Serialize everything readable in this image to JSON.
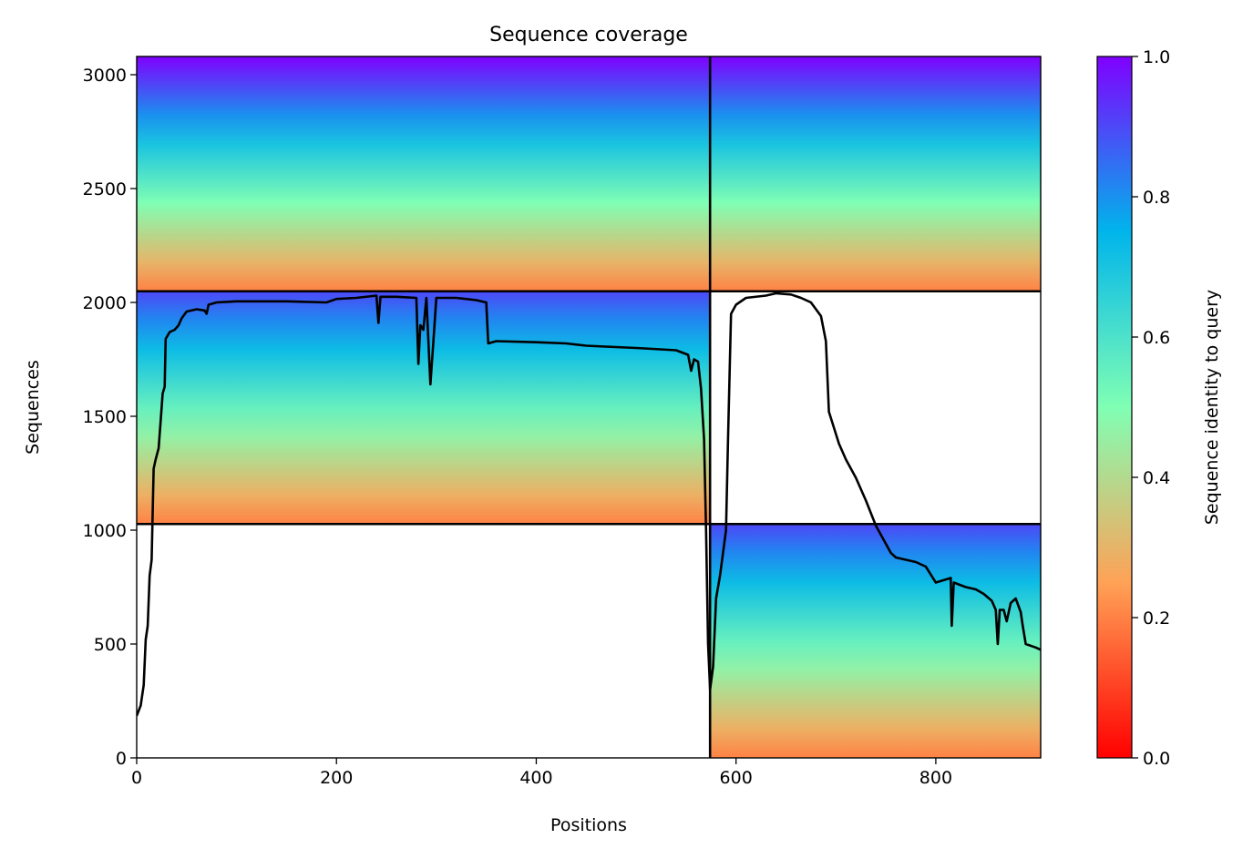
{
  "chart_data": {
    "type": "heatmap",
    "title": "Sequence coverage",
    "xlabel": "Positions",
    "ylabel": "Sequences",
    "xlim": [
      0,
      905
    ],
    "ylim": [
      0,
      3080
    ],
    "xticks": [
      0,
      200,
      400,
      600,
      800
    ],
    "yticks": [
      0,
      500,
      1000,
      1500,
      2000,
      2500,
      3000
    ],
    "colorbar": {
      "label": "Sequence identity to query",
      "range": [
        0.0,
        1.0
      ],
      "ticks": [
        "0.0",
        "0.2",
        "0.4",
        "0.6",
        "0.8",
        "1.0"
      ],
      "colormap": "rainbow_r",
      "stops": [
        "#ff0000",
        "#ffa256",
        "#80ffb4",
        "#00b5eb",
        "#8000ff"
      ]
    },
    "grid": false,
    "divider_lines": {
      "horizontal": [
        1027,
        2049
      ],
      "vertical": [
        574
      ]
    },
    "blocks": [
      {
        "x": [
          0,
          574
        ],
        "y": [
          2049,
          3080
        ],
        "identity_range": [
          0.2,
          1.0
        ]
      },
      {
        "x": [
          574,
          905
        ],
        "y": [
          2049,
          3080
        ],
        "identity_range": [
          0.2,
          1.0
        ]
      },
      {
        "x": [
          0,
          574
        ],
        "y": [
          1027,
          2049
        ],
        "identity_range": [
          0.2,
          0.9
        ]
      },
      {
        "x": [
          574,
          905
        ],
        "y": [
          0,
          1027
        ],
        "identity_range": [
          0.2,
          0.9
        ]
      }
    ],
    "coverage_line": {
      "color": "#000000",
      "points": [
        [
          0,
          185
        ],
        [
          4,
          230
        ],
        [
          7,
          320
        ],
        [
          9,
          520
        ],
        [
          11,
          580
        ],
        [
          13,
          800
        ],
        [
          15,
          870
        ],
        [
          17,
          1270
        ],
        [
          19,
          1310
        ],
        [
          22,
          1360
        ],
        [
          24,
          1480
        ],
        [
          26,
          1600
        ],
        [
          28,
          1630
        ],
        [
          29,
          1840
        ],
        [
          33,
          1870
        ],
        [
          38,
          1880
        ],
        [
          42,
          1900
        ],
        [
          45,
          1930
        ],
        [
          50,
          1960
        ],
        [
          60,
          1970
        ],
        [
          68,
          1965
        ],
        [
          70,
          1950
        ],
        [
          72,
          1990
        ],
        [
          80,
          2000
        ],
        [
          100,
          2005
        ],
        [
          150,
          2005
        ],
        [
          190,
          2000
        ],
        [
          200,
          2015
        ],
        [
          220,
          2020
        ],
        [
          240,
          2030
        ],
        [
          242,
          1910
        ],
        [
          244,
          2025
        ],
        [
          260,
          2025
        ],
        [
          280,
          2020
        ],
        [
          282,
          1730
        ],
        [
          284,
          1900
        ],
        [
          287,
          1880
        ],
        [
          290,
          2020
        ],
        [
          294,
          1640
        ],
        [
          297,
          1830
        ],
        [
          300,
          2020
        ],
        [
          320,
          2020
        ],
        [
          340,
          2010
        ],
        [
          350,
          2000
        ],
        [
          352,
          1820
        ],
        [
          360,
          1830
        ],
        [
          400,
          1825
        ],
        [
          430,
          1820
        ],
        [
          450,
          1810
        ],
        [
          500,
          1800
        ],
        [
          540,
          1790
        ],
        [
          552,
          1770
        ],
        [
          555,
          1700
        ],
        [
          558,
          1750
        ],
        [
          562,
          1740
        ],
        [
          565,
          1620
        ],
        [
          568,
          1400
        ],
        [
          570,
          1000
        ],
        [
          572,
          500
        ],
        [
          574,
          300
        ],
        [
          577,
          400
        ],
        [
          580,
          700
        ],
        [
          584,
          800
        ],
        [
          587,
          900
        ],
        [
          590,
          1000
        ],
        [
          592,
          1400
        ],
        [
          595,
          1950
        ],
        [
          600,
          1990
        ],
        [
          610,
          2020
        ],
        [
          630,
          2030
        ],
        [
          640,
          2040
        ],
        [
          655,
          2035
        ],
        [
          665,
          2020
        ],
        [
          675,
          2000
        ],
        [
          685,
          1940
        ],
        [
          690,
          1830
        ],
        [
          693,
          1520
        ],
        [
          698,
          1450
        ],
        [
          703,
          1380
        ],
        [
          710,
          1310
        ],
        [
          720,
          1230
        ],
        [
          730,
          1130
        ],
        [
          740,
          1020
        ],
        [
          745,
          980
        ],
        [
          750,
          940
        ],
        [
          755,
          900
        ],
        [
          760,
          880
        ],
        [
          770,
          870
        ],
        [
          780,
          860
        ],
        [
          790,
          840
        ],
        [
          800,
          770
        ],
        [
          815,
          790
        ],
        [
          816,
          580
        ],
        [
          818,
          770
        ],
        [
          830,
          750
        ],
        [
          840,
          740
        ],
        [
          848,
          720
        ],
        [
          856,
          690
        ],
        [
          860,
          650
        ],
        [
          862,
          500
        ],
        [
          864,
          650
        ],
        [
          868,
          650
        ],
        [
          871,
          600
        ],
        [
          875,
          680
        ],
        [
          880,
          700
        ],
        [
          885,
          640
        ],
        [
          887,
          580
        ],
        [
          890,
          500
        ],
        [
          900,
          485
        ],
        [
          905,
          475
        ]
      ]
    }
  }
}
